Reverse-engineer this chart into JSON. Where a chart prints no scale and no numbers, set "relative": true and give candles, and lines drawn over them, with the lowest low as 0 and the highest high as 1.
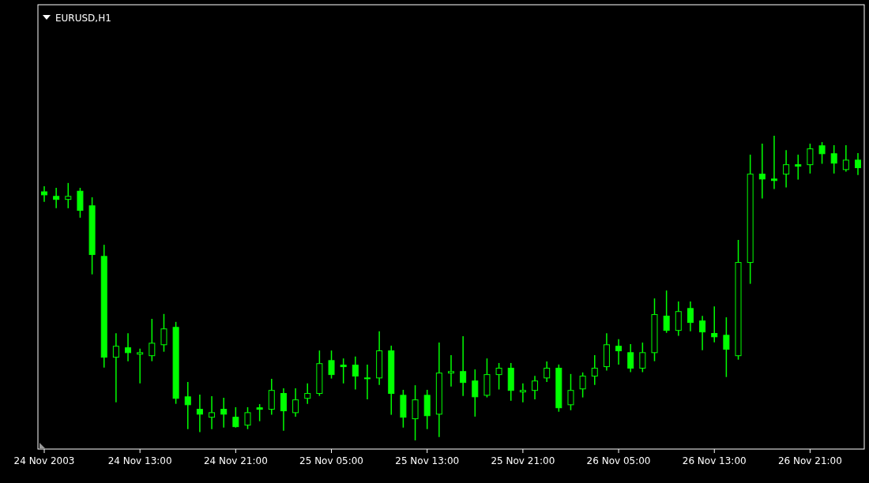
{
  "chart_data": {
    "type": "candlestick",
    "title": "EURUSD,H1",
    "relative": true,
    "color": "#00ff00",
    "categories": [
      "24 Nov 2003",
      null,
      null,
      null,
      null,
      null,
      null,
      null,
      "24 Nov 13:00",
      null,
      null,
      null,
      null,
      null,
      null,
      null,
      "24 Nov 21:00",
      null,
      null,
      null,
      null,
      null,
      null,
      null,
      "25 Nov 05:00",
      null,
      null,
      null,
      null,
      null,
      null,
      null,
      "25 Nov 13:00",
      null,
      null,
      null,
      null,
      null,
      null,
      null,
      "25 Nov 21:00",
      null,
      null,
      null,
      null,
      null,
      null,
      null,
      "26 Nov 05:00",
      null,
      null,
      null,
      null,
      null,
      null,
      null,
      "26 Nov 13:00",
      null,
      null,
      null,
      null,
      null,
      null,
      null,
      "26 Nov 21:00",
      null,
      null,
      null,
      null
    ],
    "ohlc": [
      [
        0.816,
        0.834,
        0.783,
        0.806
      ],
      [
        0.801,
        0.829,
        0.762,
        0.791
      ],
      [
        0.791,
        0.845,
        0.762,
        0.801
      ],
      [
        0.818,
        0.829,
        0.731,
        0.755
      ],
      [
        0.77,
        0.798,
        0.545,
        0.61
      ],
      [
        0.604,
        0.642,
        0.239,
        0.273
      ],
      [
        0.273,
        0.352,
        0.125,
        0.309
      ],
      [
        0.304,
        0.352,
        0.26,
        0.288
      ],
      [
        0.283,
        0.301,
        0.187,
        0.288
      ],
      [
        0.278,
        0.399,
        0.26,
        0.319
      ],
      [
        0.314,
        0.415,
        0.291,
        0.366
      ],
      [
        0.371,
        0.389,
        0.12,
        0.138
      ],
      [
        0.143,
        0.192,
        0.037,
        0.117
      ],
      [
        0.102,
        0.15,
        0.027,
        0.086
      ],
      [
        0.076,
        0.145,
        0.037,
        0.091
      ],
      [
        0.102,
        0.14,
        0.042,
        0.086
      ],
      [
        0.076,
        0.109,
        0.042,
        0.045
      ],
      [
        0.05,
        0.109,
        0.037,
        0.091
      ],
      [
        0.107,
        0.119,
        0.063,
        0.102
      ],
      [
        0.102,
        0.202,
        0.084,
        0.164
      ],
      [
        0.154,
        0.171,
        0.032,
        0.097
      ],
      [
        0.091,
        0.171,
        0.078,
        0.133
      ],
      [
        0.138,
        0.187,
        0.12,
        0.154
      ],
      [
        0.154,
        0.295,
        0.146,
        0.252
      ],
      [
        0.262,
        0.295,
        0.203,
        0.216
      ],
      [
        0.247,
        0.269,
        0.187,
        0.242
      ],
      [
        0.247,
        0.275,
        0.167,
        0.211
      ],
      [
        0.205,
        0.249,
        0.135,
        0.205
      ],
      [
        0.205,
        0.358,
        0.182,
        0.294
      ],
      [
        0.294,
        0.311,
        0.084,
        0.154
      ],
      [
        0.148,
        0.166,
        0.042,
        0.076
      ],
      [
        0.071,
        0.181,
        0,
        0.133
      ],
      [
        0.148,
        0.166,
        0.037,
        0.081
      ],
      [
        0.086,
        0.321,
        0.011,
        0.221
      ],
      [
        0.221,
        0.28,
        0.177,
        0.226
      ],
      [
        0.226,
        0.342,
        0.146,
        0.19
      ],
      [
        0.195,
        0.233,
        0.078,
        0.143
      ],
      [
        0.148,
        0.269,
        0.141,
        0.216
      ],
      [
        0.216,
        0.254,
        0.167,
        0.237
      ],
      [
        0.237,
        0.254,
        0.13,
        0.164
      ],
      [
        0.159,
        0.187,
        0.125,
        0.164
      ],
      [
        0.164,
        0.212,
        0.135,
        0.195
      ],
      [
        0.205,
        0.259,
        0.192,
        0.237
      ],
      [
        0.237,
        0.249,
        0.094,
        0.107
      ],
      [
        0.117,
        0.218,
        0.099,
        0.164
      ],
      [
        0.169,
        0.223,
        0.141,
        0.211
      ],
      [
        0.211,
        0.28,
        0.182,
        0.237
      ],
      [
        0.242,
        0.352,
        0.229,
        0.314
      ],
      [
        0.309,
        0.332,
        0.249,
        0.294
      ],
      [
        0.288,
        0.316,
        0.224,
        0.237
      ],
      [
        0.237,
        0.321,
        0.224,
        0.288
      ],
      [
        0.288,
        0.466,
        0.26,
        0.413
      ],
      [
        0.408,
        0.492,
        0.353,
        0.361
      ],
      [
        0.361,
        0.456,
        0.343,
        0.423
      ],
      [
        0.433,
        0.456,
        0.358,
        0.387
      ],
      [
        0.392,
        0.409,
        0.296,
        0.356
      ],
      [
        0.351,
        0.44,
        0.322,
        0.34
      ],
      [
        0.345,
        0.404,
        0.208,
        0.299
      ],
      [
        0.278,
        0.658,
        0.265,
        0.584
      ],
      [
        0.584,
        0.938,
        0.514,
        0.874
      ],
      [
        0.874,
        0.974,
        0.794,
        0.858
      ],
      [
        0.858,
        1,
        0.825,
        0.853
      ],
      [
        0.874,
        0.953,
        0.83,
        0.905
      ],
      [
        0.905,
        0.938,
        0.856,
        0.9
      ],
      [
        0.905,
        0.974,
        0.876,
        0.957
      ],
      [
        0.967,
        0.979,
        0.908,
        0.941
      ],
      [
        0.941,
        0.969,
        0.876,
        0.91
      ],
      [
        0.889,
        0.969,
        0.882,
        0.92
      ],
      [
        0.92,
        0.943,
        0.871,
        0.895
      ]
    ]
  }
}
